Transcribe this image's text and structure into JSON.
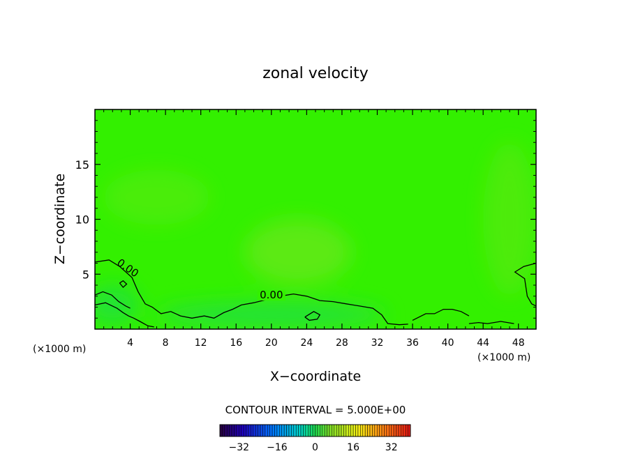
{
  "chart_data": {
    "type": "heatmap",
    "title": "zonal velocity",
    "xlabel": "X−coordinate",
    "ylabel": "Z−coordinate",
    "x_unit_left": "(×1000 m)",
    "x_unit_right": "(×1000 m)",
    "xlim": [
      0,
      50
    ],
    "ylim": [
      0,
      20
    ],
    "x_ticks": [
      4,
      8,
      12,
      16,
      20,
      24,
      28,
      32,
      36,
      40,
      44,
      48
    ],
    "y_ticks": [
      5,
      10,
      15
    ],
    "x_tick_labels": [
      "4",
      "8",
      "12",
      "16",
      "20",
      "24",
      "28",
      "32",
      "36",
      "40",
      "44",
      "48"
    ],
    "y_tick_labels": [
      "5",
      "10",
      "15"
    ],
    "contour_interval_label": "CONTOUR INTERVAL = 5.000E+00",
    "contour_labels": [
      {
        "text": "0.00",
        "x": 3.5,
        "y": 5.3,
        "rotate": 35
      },
      {
        "text": "0.00",
        "x": 20.0,
        "y": 2.8,
        "rotate": 0
      }
    ],
    "colorbar": {
      "range": [
        -40,
        40
      ],
      "ticks": [
        -32,
        -16,
        0,
        16,
        32
      ],
      "tick_labels": [
        "−32",
        "−16",
        "0",
        "16",
        "32"
      ]
    },
    "field_colors": {
      "base": "#33f000",
      "lighter": "#66e81a",
      "weak_negative": "#1fde4a"
    }
  }
}
